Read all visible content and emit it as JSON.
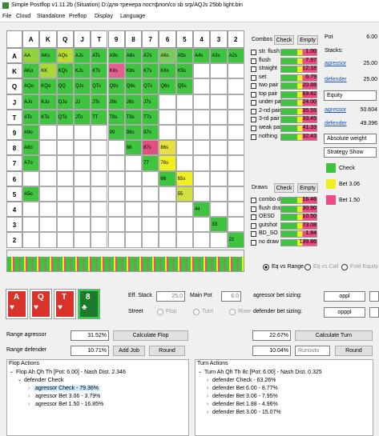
{
  "window": {
    "title": "Simple Postflop v1.11.2b (Situation) D:/для тренера постфлоп/со sb srp/AQJs 25bb light.bin",
    "menu": [
      "File",
      "Cloud",
      "Standalone",
      "Preflop",
      "Display",
      "Language"
    ]
  },
  "grid": {
    "columns": [
      "A",
      "K",
      "Q",
      "J",
      "T",
      "9",
      "8",
      "7",
      "6",
      "5",
      "4",
      "3",
      "2"
    ],
    "rows": [
      {
        "label": "A",
        "cells": [
          {
            "hand": "AA",
            "color": "#8fd43a"
          },
          {
            "hand": "AKs",
            "color": "#3ec43e"
          },
          {
            "hand": "AQs",
            "color": "#b8dc34"
          },
          {
            "hand": "AJs",
            "color": "#3ec43e"
          },
          {
            "hand": "ATs",
            "color": "#3ec43e"
          },
          {
            "hand": "A9s",
            "color": "#3ec43e"
          },
          {
            "hand": "A8s",
            "color": "#3ec43e"
          },
          {
            "hand": "A7s",
            "color": "#3ec43e"
          },
          {
            "hand": "A6s",
            "color": "#7acb5a"
          },
          {
            "hand": "A5s",
            "color": "#3ec43e"
          },
          {
            "hand": "A4s",
            "color": "#3ec43e"
          },
          {
            "hand": "A3s",
            "color": "#3ec43e"
          },
          {
            "hand": "A2s",
            "color": "#3ec43e"
          }
        ]
      },
      {
        "label": "K",
        "cells": [
          {
            "hand": "AKo",
            "color": "#3ec43e"
          },
          {
            "hand": "KK",
            "color": "#a8d83a"
          },
          {
            "hand": "KQs",
            "color": "#3ec43e"
          },
          {
            "hand": "KJs",
            "color": "#3ec43e"
          },
          {
            "hand": "KTs",
            "color": "#3ec43e"
          },
          {
            "hand": "K9s",
            "color": "#e46090"
          },
          {
            "hand": "K8s",
            "color": "#3ec43e"
          },
          {
            "hand": "K7s",
            "color": "#3ec43e"
          },
          {
            "hand": "K6s",
            "color": "#3ec43e"
          },
          {
            "hand": "K5s",
            "color": "#3ec43e"
          },
          null,
          null,
          null
        ]
      },
      {
        "label": "Q",
        "cells": [
          {
            "hand": "AQo",
            "color": "#3ec43e"
          },
          {
            "hand": "KQo",
            "color": "#3ec43e"
          },
          {
            "hand": "QQ",
            "color": "#3ec43e"
          },
          {
            "hand": "QJs",
            "color": "#3ec43e"
          },
          {
            "hand": "QTs",
            "color": "#3ec43e"
          },
          {
            "hand": "Q9s",
            "color": "#3ec43e"
          },
          {
            "hand": "Q8s",
            "color": "#3ec43e"
          },
          {
            "hand": "Q7s",
            "color": "#3ec43e"
          },
          {
            "hand": "Q6s",
            "color": "#3ec43e"
          },
          {
            "hand": "Q5s",
            "color": "#3ec43e"
          },
          null,
          null,
          null
        ]
      },
      {
        "label": "J",
        "cells": [
          {
            "hand": "AJo",
            "color": "#3ec43e"
          },
          {
            "hand": "KJo",
            "color": "#3ec43e"
          },
          {
            "hand": "QJo",
            "color": "#3ec43e"
          },
          {
            "hand": "JJ",
            "color": "#3ec43e"
          },
          {
            "hand": "JTs",
            "color": "#3ec43e"
          },
          {
            "hand": "J9s",
            "color": "#3ec43e"
          },
          {
            "hand": "J8s",
            "color": "#3ec43e"
          },
          {
            "hand": "J7s",
            "color": "#3ec43e"
          },
          null,
          null,
          null,
          null,
          null
        ]
      },
      {
        "label": "T",
        "cells": [
          {
            "hand": "ATo",
            "color": "#3ec43e"
          },
          {
            "hand": "KTo",
            "color": "#3ec43e"
          },
          {
            "hand": "QTo",
            "color": "#3ec43e"
          },
          {
            "hand": "JTo",
            "color": "#3ec43e"
          },
          {
            "hand": "TT",
            "color": "#3ec43e"
          },
          {
            "hand": "T9s",
            "color": "#3ec43e"
          },
          {
            "hand": "T8s",
            "color": "#3ec43e"
          },
          {
            "hand": "T7s",
            "color": "#3ec43e"
          },
          null,
          null,
          null,
          null,
          null
        ]
      },
      {
        "label": "9",
        "cells": [
          {
            "hand": "A9o",
            "color": "#3ec43e"
          },
          null,
          null,
          null,
          null,
          {
            "hand": "99",
            "color": "#3ec43e"
          },
          {
            "hand": "98s",
            "color": "#3ec43e"
          },
          {
            "hand": "97s",
            "color": "#3ec43e"
          },
          null,
          null,
          null,
          null,
          null
        ]
      },
      {
        "label": "8",
        "cells": [
          {
            "hand": "A8o",
            "color": "#3ec43e"
          },
          null,
          null,
          null,
          null,
          null,
          {
            "hand": "88",
            "color": "#3ec43e"
          },
          {
            "hand": "87s",
            "color": "#e05080"
          },
          {
            "hand": "86s",
            "color": "#e8e040"
          },
          null,
          null,
          null,
          null
        ]
      },
      {
        "label": "7",
        "cells": [
          {
            "hand": "A7o",
            "color": "#3ec43e"
          },
          null,
          null,
          null,
          null,
          null,
          null,
          {
            "hand": "77",
            "color": "#3ec43e"
          },
          {
            "hand": "76s",
            "color": "#f0f020"
          },
          null,
          null,
          null,
          null
        ]
      },
      {
        "label": "6",
        "cells": [
          null,
          null,
          null,
          null,
          null,
          null,
          null,
          null,
          {
            "hand": "66",
            "color": "#3ec43e"
          },
          {
            "hand": "65s",
            "color": "#f0f020"
          },
          null,
          null,
          null
        ]
      },
      {
        "label": "5",
        "cells": [
          {
            "hand": "A5o",
            "color": "#3ec43e"
          },
          null,
          null,
          null,
          null,
          null,
          null,
          null,
          null,
          {
            "hand": "55",
            "color": "#d0e040"
          },
          null,
          null,
          null
        ]
      },
      {
        "label": "4",
        "cells": [
          null,
          null,
          null,
          null,
          null,
          null,
          null,
          null,
          null,
          null,
          {
            "hand": "44",
            "color": "#3ec43e"
          },
          null,
          null
        ]
      },
      {
        "label": "3",
        "cells": [
          null,
          null,
          null,
          null,
          null,
          null,
          null,
          null,
          null,
          null,
          null,
          {
            "hand": "33",
            "color": "#3ec43e"
          },
          null
        ]
      },
      {
        "label": "2",
        "cells": [
          null,
          null,
          null,
          null,
          null,
          null,
          null,
          null,
          null,
          null,
          null,
          null,
          {
            "hand": "22",
            "color": "#3ec43e"
          }
        ]
      }
    ]
  },
  "combos": {
    "title": "Combos",
    "check": "Check",
    "empty": "Empty",
    "items": [
      {
        "name": "str. flush",
        "value": "1.00"
      },
      {
        "name": "flush",
        "value": "7.97"
      },
      {
        "name": "straight",
        "value": "12.18"
      },
      {
        "name": "set",
        "value": "6.79"
      },
      {
        "name": "two pair",
        "value": "20.88"
      },
      {
        "name": "top pair",
        "value": "69.82"
      },
      {
        "name": "under pair",
        "value": "24.00"
      },
      {
        "name": "2-nd pair",
        "value": "35.55"
      },
      {
        "name": "3-rd pair",
        "value": "33.45"
      },
      {
        "name": "weak pair",
        "value": "41.33"
      },
      {
        "name": "nothing",
        "value": "32.43"
      }
    ]
  },
  "draws": {
    "title": "Draws",
    "check": "Check",
    "empty": "Empty",
    "items": [
      {
        "name": "combo draw",
        "value": "16.46"
      },
      {
        "name": "flush draw",
        "value": "30.90"
      },
      {
        "name": "OESD",
        "value": "10.50"
      },
      {
        "name": "gutshot",
        "value": "73.08"
      },
      {
        "name": "BD_SO",
        "value": "1.84"
      },
      {
        "name": "no draw",
        "value": "139.86"
      }
    ]
  },
  "info": {
    "pot_label": "Pot",
    "pot": "6.00",
    "stacks_label": "Stacks:",
    "players": [
      {
        "name": "agressor",
        "stack": "25.00"
      },
      {
        "name": "defender",
        "stack": "25.00"
      }
    ],
    "equity_mode": "Equity",
    "equity": [
      {
        "name": "agressor",
        "value": "50.604"
      },
      {
        "name": "defender",
        "value": "49.396"
      }
    ],
    "weight_mode": "Absolute weight",
    "strategy_mode": "Strategy Show",
    "legend": [
      {
        "name": "Check",
        "color": "#3ec43e"
      },
      {
        "name": "Bet 3.06",
        "color": "#f0f020"
      },
      {
        "name": "Bet 1.50",
        "color": "#f04a86"
      }
    ]
  },
  "equity_options": [
    "Eq vs Range",
    "Eq vs Call",
    "Fold Equity"
  ],
  "board": [
    {
      "rank": "A",
      "suit": "♥",
      "color": "#d8342c"
    },
    {
      "rank": "Q",
      "suit": "♥",
      "color": "#d8342c"
    },
    {
      "rank": "T",
      "suit": "♥",
      "color": "#d8342c"
    },
    {
      "rank": "8",
      "suit": "♣",
      "color": "#1d7a2a"
    }
  ],
  "settings": {
    "eff_stack_label": "Eff. Stack",
    "eff_stack": "25.0",
    "main_pot_label": "Main Pot",
    "main_pot": "6.0",
    "street_label": "Street",
    "streets": [
      "Flop",
      "Turn",
      "River"
    ],
    "agressor_sizing_label": "agressor bet sizing:",
    "agressor_sizing": "oppl",
    "defender_sizing_label": "defender bet sizing:",
    "defender_sizing": "opppl"
  },
  "ranges": {
    "agressor_label": "Range agressor",
    "defender_label": "Range defender",
    "flop_agressor": "31.52%",
    "flop_defender": "10.71%",
    "turn_agressor": "22.67%",
    "turn_defender": "10.04%",
    "calc_flop": "Calculate Flop",
    "calc_turn": "Calculate Turn",
    "add_job": "Add Job",
    "round": "Round",
    "runouts": "Runouts"
  },
  "flop_actions": {
    "title": "Flop Actions",
    "root": "Flop Ah Qh Th [Pot: 6.00] - Nash Dist. 2.346",
    "node": "defender Check",
    "children": [
      "agressor Check - 79.36%",
      "agressor Bet 3.06 - 3.79%",
      "agressor Bet 1.50 - 16.85%"
    ]
  },
  "turn_actions": {
    "title": "Turn Actions",
    "root": "Turn Ah Qh Th 8c [Pot: 6.00] - Nash Dist. 0.325",
    "children": [
      "defender Check - 63.26%",
      "defender Bet 6.00 - 8.77%",
      "defender Bet 3.06 - 7.95%",
      "defender Bet 1.88 - 4.96%",
      "defender Bet 3.00 - 15.07%"
    ]
  }
}
